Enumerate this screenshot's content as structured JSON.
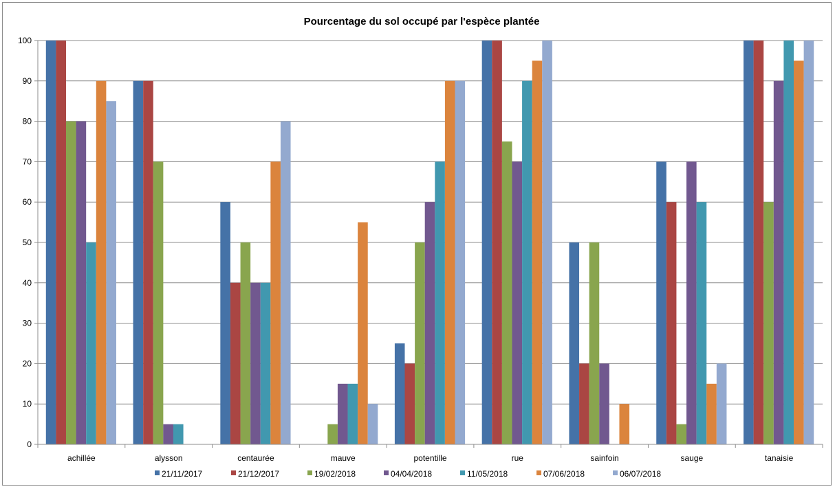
{
  "chart_data": {
    "type": "bar",
    "title": "Pourcentage du sol occupé par l'espèce plantée",
    "xlabel": "",
    "ylabel": "",
    "ylim": [
      0,
      100
    ],
    "yticks": [
      0,
      10,
      20,
      30,
      40,
      50,
      60,
      70,
      80,
      90,
      100
    ],
    "grid": true,
    "legend_position": "bottom",
    "categories": [
      "achillée",
      "alysson",
      "centaurée",
      "mauve",
      "potentille",
      "rue",
      "sainfoin",
      "sauge",
      "tanaisie"
    ],
    "series": [
      {
        "name": "21/11/2017",
        "color": "#4572A7",
        "values": [
          100,
          90,
          60,
          0,
          25,
          100,
          50,
          70,
          100
        ]
      },
      {
        "name": "21/12/2017",
        "color": "#AA4643",
        "values": [
          100,
          90,
          40,
          0,
          20,
          100,
          20,
          60,
          100
        ]
      },
      {
        "name": "19/02/2018",
        "color": "#89A54E",
        "values": [
          80,
          70,
          50,
          5,
          50,
          75,
          50,
          5,
          60
        ]
      },
      {
        "name": "04/04/2018",
        "color": "#71588F",
        "values": [
          80,
          5,
          40,
          15,
          60,
          70,
          20,
          70,
          90
        ]
      },
      {
        "name": "11/05/2018",
        "color": "#4198AF",
        "values": [
          50,
          5,
          40,
          15,
          70,
          90,
          0,
          60,
          100
        ]
      },
      {
        "name": "07/06/2018",
        "color": "#DB843D",
        "values": [
          90,
          0,
          70,
          55,
          90,
          95,
          10,
          15,
          95
        ]
      },
      {
        "name": "06/07/2018",
        "color": "#93A9CF",
        "values": [
          85,
          0,
          80,
          10,
          90,
          100,
          0,
          20,
          100
        ]
      }
    ]
  }
}
